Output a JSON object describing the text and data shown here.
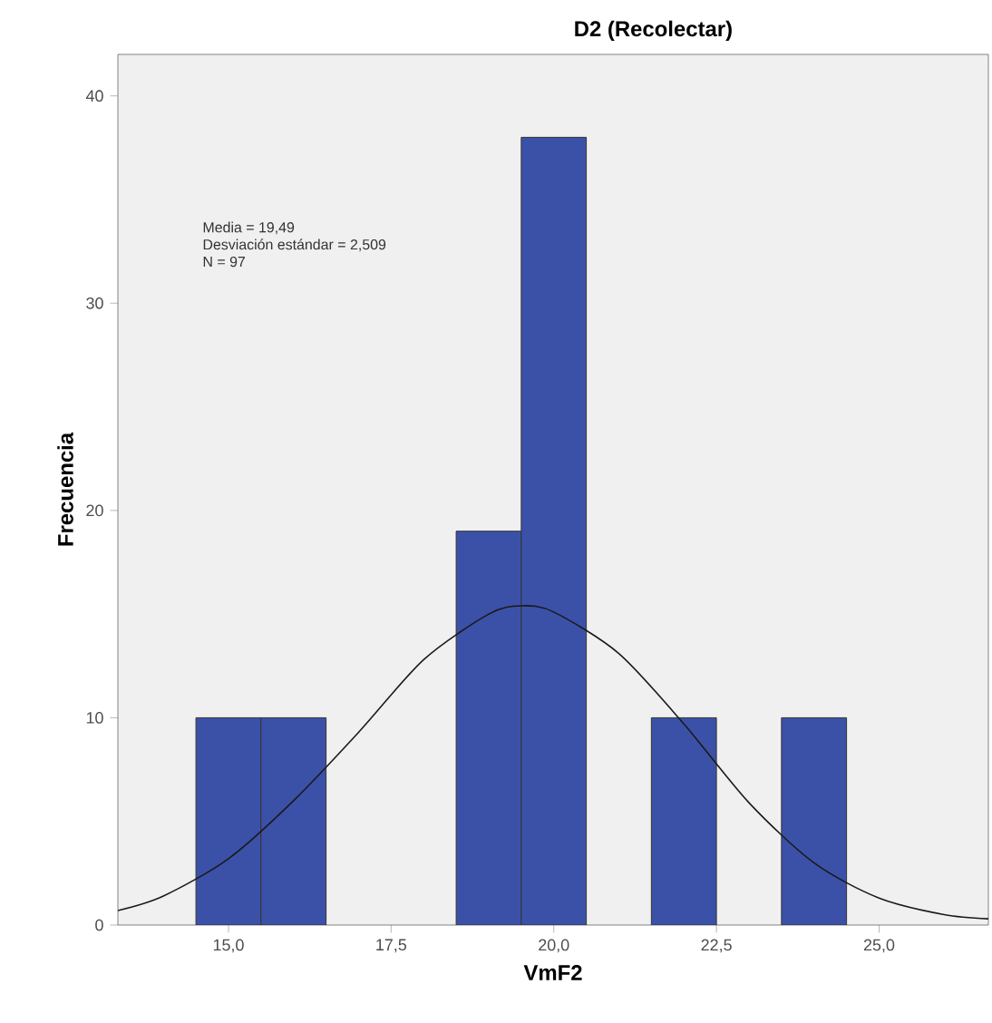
{
  "chart_data": {
    "type": "histogram",
    "title": "D2 (Recolectar)",
    "xlabel": "VmF2",
    "ylabel": "Frecuencia",
    "bins": [
      14.5,
      15.5,
      16.5,
      17.5,
      18.5,
      19.5,
      20.5,
      21.5,
      22.5,
      23.5,
      24.5
    ],
    "values": [
      10,
      10,
      0,
      0,
      19,
      38,
      0,
      10,
      0,
      10
    ],
    "color": "#3b51a8",
    "series": [
      {
        "type": "line",
        "color": "#1a1a1a",
        "x": [
          13.3,
          14,
          15,
          16,
          17,
          18,
          19,
          19.5,
          20,
          21,
          22,
          23,
          24,
          25,
          26,
          26.68
        ],
        "values": [
          0.7,
          1.4,
          3.2,
          6.0,
          9.3,
          12.8,
          15.0,
          15.4,
          15.1,
          13.1,
          9.7,
          5.9,
          3.0,
          1.3,
          0.5,
          0.3
        ]
      }
    ],
    "xlim": [
      13.3,
      26.68
    ],
    "ylim": [
      0,
      42
    ],
    "xticks": [
      {
        "value": 15,
        "label": "15,0"
      },
      {
        "value": 17.5,
        "label": "17,5"
      },
      {
        "value": 20,
        "label": "20,0"
      },
      {
        "value": 22.5,
        "label": "22,5"
      },
      {
        "value": 25,
        "label": "25,0"
      }
    ],
    "yticks": [
      0,
      10,
      20,
      30,
      40
    ],
    "annotations": [
      "Media = 19,49",
      "Desviación estándar = 2,509",
      "N = 97"
    ],
    "grid": false
  }
}
